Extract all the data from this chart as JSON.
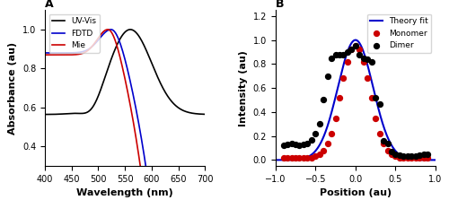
{
  "panel_A": {
    "title": "A",
    "xlabel": "Wavelength (nm)",
    "ylabel": "Absorbance (au)",
    "xlim": [
      400,
      700
    ],
    "ylim": [
      0.3,
      1.1
    ],
    "yticks": [
      0.4,
      0.6,
      0.8,
      1.0
    ],
    "uvvis_color": "#000000",
    "fdtd_color": "#0000cc",
    "mie_color": "#cc0000",
    "legend_labels": [
      "UV-Vis",
      "FDTD",
      "Mie"
    ]
  },
  "panel_B": {
    "title": "B",
    "xlabel": "Position (au)",
    "ylabel": "Intensity (au)",
    "xlim": [
      -1.0,
      1.0
    ],
    "ylim": [
      -0.05,
      1.25
    ],
    "yticks": [
      0.0,
      0.2,
      0.4,
      0.6,
      0.8,
      1.0,
      1.2
    ],
    "theory_color": "#0000cc",
    "monomer_color": "#cc0000",
    "dimer_color": "#000000",
    "legend_labels": [
      "Theory fit",
      "Monomer",
      "Dimer"
    ],
    "psf_sigma": 0.22,
    "monomer_x": [
      -0.9,
      -0.85,
      -0.8,
      -0.75,
      -0.7,
      -0.65,
      -0.6,
      -0.55,
      -0.5,
      -0.45,
      -0.4,
      -0.35,
      -0.3,
      -0.25,
      -0.2,
      -0.15,
      -0.1,
      -0.05,
      0.0,
      0.05,
      0.1,
      0.15,
      0.2,
      0.25,
      0.3,
      0.35,
      0.4,
      0.45,
      0.5,
      0.55,
      0.6,
      0.65,
      0.7,
      0.75,
      0.8,
      0.85,
      0.9
    ],
    "monomer_y": [
      0.02,
      0.02,
      0.02,
      0.02,
      0.02,
      0.02,
      0.02,
      0.02,
      0.03,
      0.05,
      0.08,
      0.14,
      0.22,
      0.35,
      0.52,
      0.68,
      0.82,
      0.92,
      0.95,
      0.92,
      0.82,
      0.68,
      0.52,
      0.35,
      0.22,
      0.14,
      0.08,
      0.05,
      0.03,
      0.02,
      0.02,
      0.02,
      0.02,
      0.02,
      0.02,
      0.02,
      0.02
    ],
    "dimer_x": [
      -0.9,
      -0.85,
      -0.8,
      -0.75,
      -0.7,
      -0.65,
      -0.6,
      -0.55,
      -0.5,
      -0.45,
      -0.4,
      -0.35,
      -0.3,
      -0.25,
      -0.2,
      -0.15,
      -0.1,
      -0.05,
      0.0,
      0.05,
      0.1,
      0.15,
      0.2,
      0.25,
      0.3,
      0.35,
      0.4,
      0.45,
      0.5,
      0.55,
      0.6,
      0.65,
      0.7,
      0.75,
      0.8,
      0.85,
      0.9
    ],
    "dimer_y": [
      0.12,
      0.13,
      0.14,
      0.13,
      0.12,
      0.13,
      0.14,
      0.17,
      0.22,
      0.3,
      0.5,
      0.7,
      0.85,
      0.88,
      0.88,
      0.88,
      0.9,
      0.92,
      0.95,
      0.88,
      0.85,
      0.84,
      0.82,
      0.52,
      0.47,
      0.16,
      0.14,
      0.07,
      0.05,
      0.04,
      0.03,
      0.03,
      0.03,
      0.03,
      0.04,
      0.05,
      0.05
    ]
  },
  "figure_bg": "#ffffff"
}
